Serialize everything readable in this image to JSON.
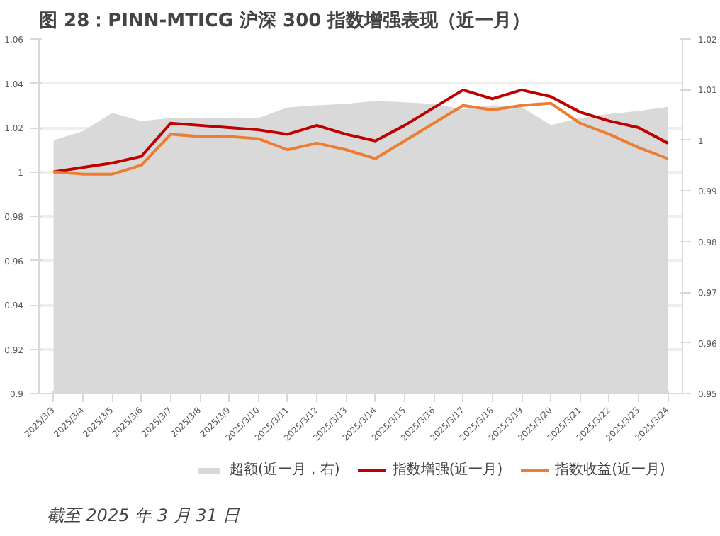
{
  "chart_data": {
    "type": "line",
    "title": "图 28：PINN-MTICG 沪深 300 指数增强表现（近一月）",
    "categories": [
      "2025/3/3",
      "2025/3/4",
      "2025/3/5",
      "2025/3/6",
      "2025/3/7",
      "2025/3/8",
      "2025/3/9",
      "2025/3/10",
      "2025/3/11",
      "2025/3/12",
      "2025/3/13",
      "2025/3/14",
      "2025/3/15",
      "2025/3/16",
      "2025/3/17",
      "2025/3/18",
      "2025/3/19",
      "2025/3/20",
      "2025/3/21",
      "2025/3/22",
      "2025/3/23",
      "2025/3/24"
    ],
    "series": [
      {
        "name": "超额(近一月，右)",
        "type": "area",
        "axis": "y2",
        "color": "#d9d9d9",
        "values": [
          1.0,
          1.0018,
          1.0054,
          1.0038,
          1.0044,
          1.0044,
          1.0044,
          1.0044,
          1.0065,
          1.0069,
          1.0072,
          1.0078,
          1.0075,
          1.0072,
          1.0061,
          1.0069,
          1.0066,
          1.003,
          1.0044,
          1.0052,
          1.0058,
          1.0066
        ]
      },
      {
        "name": "指数增强(近一月)",
        "color": "#c00000",
        "values": [
          1.0,
          1.002,
          1.004,
          1.007,
          1.022,
          1.021,
          1.02,
          1.019,
          1.017,
          1.021,
          1.017,
          1.014,
          1.021,
          1.029,
          1.037,
          1.033,
          1.037,
          1.034,
          1.027,
          1.023,
          1.02,
          1.013
        ]
      },
      {
        "name": "指数收益(近一月)",
        "color": "#ed7d31",
        "values": [
          1.0,
          0.999,
          0.999,
          1.003,
          1.017,
          1.016,
          1.016,
          1.015,
          1.01,
          1.013,
          1.01,
          1.006,
          1.014,
          1.022,
          1.03,
          1.028,
          1.03,
          1.031,
          1.022,
          1.017,
          1.011,
          1.006
        ]
      }
    ],
    "ylim": [
      0.9,
      1.06
    ],
    "yticks": [
      0.9,
      0.92,
      0.94,
      0.96,
      0.98,
      {
        "value": 1,
        "label": "1"
      },
      1.02,
      1.04,
      1.06
    ],
    "y2lim": [
      0.95,
      1.02
    ],
    "y2ticks": [
      0.95,
      0.96,
      0.97,
      0.98,
      0.99,
      {
        "value": 1,
        "label": "1"
      },
      1.01,
      1.02
    ],
    "grid": "y",
    "legend": "bottom",
    "line_style": "solid",
    "marker": "none",
    "annotations": [
      "截至 2025 年 3 月 31 日"
    ]
  }
}
